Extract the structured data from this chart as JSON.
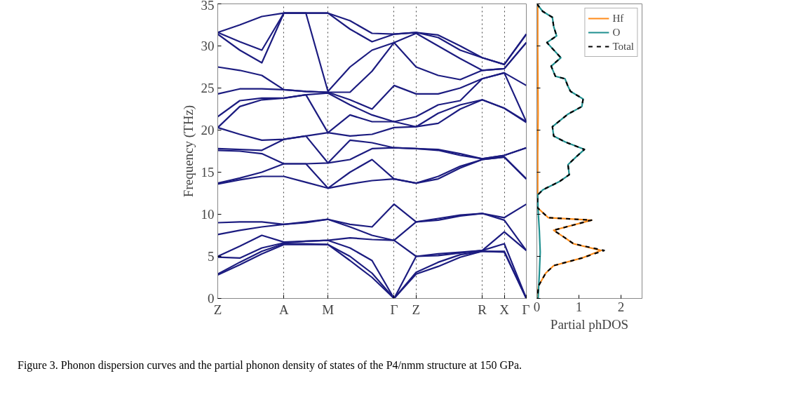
{
  "chart_data": [
    {
      "type": "line",
      "ylabel": "Frequency (THz)",
      "annotations": [
        "Figure 3. Phonon dispersion curves and the partial phonon density of states of the P4/nmm structure at 150 GPa."
      ],
      "categories": [
        "Z",
        null,
        null,
        "A",
        null,
        "M",
        null,
        null,
        "Γ",
        "Z",
        null,
        null,
        "R",
        "X",
        "Γ"
      ],
      "ylim": [
        0,
        35
      ],
      "yticks": [
        0,
        5,
        10,
        15,
        20,
        25,
        30,
        35
      ],
      "grid": "x",
      "line_style": "solid",
      "series": [
        {
          "color": "#1c1c80",
          "values": [
            2.8,
            4.0,
            5.3,
            6.4,
            6.4,
            6.4,
            4.5,
            2.5,
            0,
            2.9,
            3.8,
            4.9,
            5.6,
            5.5,
            0
          ]
        },
        {
          "color": "#1c1c80",
          "values": [
            2.9,
            4.3,
            5.6,
            6.5,
            6.5,
            6.4,
            5.0,
            3.0,
            0,
            3.1,
            4.3,
            5.2,
            5.6,
            5.6,
            0
          ]
        },
        {
          "color": "#1c1c80",
          "values": [
            4.9,
            4.8,
            6.0,
            6.6,
            6.8,
            6.9,
            6.0,
            4.5,
            0,
            5.0,
            5.1,
            5.4,
            5.7,
            6.5,
            0
          ]
        },
        {
          "color": "#1c1c80",
          "values": [
            5.0,
            6.2,
            7.5,
            6.7,
            6.8,
            6.9,
            7.2,
            7.0,
            6.9,
            5.0,
            5.3,
            5.5,
            5.7,
            7.9,
            5.7
          ]
        },
        {
          "color": "#1c1c80",
          "values": [
            7.6,
            8.1,
            8.5,
            8.8,
            9.0,
            9.4,
            8.5,
            7.5,
            6.9,
            9.1,
            9.3,
            9.8,
            10.1,
            9.3,
            5.7
          ]
        },
        {
          "color": "#1c1c80",
          "values": [
            9.0,
            9.1,
            9.1,
            8.8,
            9.1,
            9.4,
            8.8,
            8.5,
            11.2,
            9.1,
            9.5,
            9.9,
            10.1,
            9.6,
            11.2
          ]
        },
        {
          "color": "#1c1c80",
          "values": [
            13.6,
            14.1,
            14.5,
            14.5,
            13.8,
            13.1,
            13.6,
            14.0,
            14.2,
            13.7,
            14.2,
            15.5,
            16.5,
            16.8,
            14.2
          ]
        },
        {
          "color": "#1c1c80",
          "values": [
            13.7,
            14.3,
            15.0,
            16.0,
            16.0,
            13.1,
            15.0,
            16.5,
            14.2,
            13.7,
            14.5,
            15.7,
            16.5,
            16.8,
            14.2
          ]
        },
        {
          "color": "#1c1c80",
          "values": [
            17.6,
            17.5,
            17.2,
            16.0,
            16.0,
            16.1,
            16.5,
            17.8,
            17.9,
            17.8,
            17.6,
            17.0,
            16.6,
            17.0,
            17.9
          ]
        },
        {
          "color": "#1c1c80",
          "values": [
            17.8,
            17.7,
            17.6,
            18.9,
            19.3,
            16.1,
            18.8,
            18.5,
            17.9,
            17.8,
            17.7,
            17.2,
            16.6,
            17.0,
            17.9
          ]
        },
        {
          "color": "#1c1c80",
          "values": [
            20.3,
            19.5,
            18.8,
            18.9,
            19.3,
            19.7,
            19.3,
            19.5,
            20.3,
            20.4,
            20.8,
            22.5,
            23.6,
            22.6,
            20.9
          ]
        },
        {
          "color": "#1c1c80",
          "values": [
            20.3,
            22.8,
            23.6,
            23.8,
            24.2,
            19.7,
            21.8,
            21.0,
            21.0,
            20.4,
            22.0,
            23.0,
            23.6,
            22.6,
            21.0
          ]
        },
        {
          "color": "#1c1c80",
          "values": [
            21.6,
            23.5,
            23.8,
            23.8,
            24.2,
            24.4,
            23.0,
            21.8,
            21.0,
            21.6,
            23.0,
            23.5,
            26.1,
            26.8,
            21.0
          ]
        },
        {
          "color": "#1c1c80",
          "values": [
            24.3,
            24.9,
            24.9,
            24.8,
            24.6,
            24.5,
            23.6,
            22.5,
            25.3,
            24.3,
            24.3,
            25.0,
            26.1,
            26.8,
            25.3
          ]
        },
        {
          "color": "#1c1c80",
          "values": [
            27.5,
            27.1,
            26.5,
            24.8,
            24.6,
            24.5,
            24.5,
            27.0,
            30.4,
            27.5,
            26.5,
            26.0,
            27.1,
            27.3,
            30.4
          ]
        },
        {
          "color": "#1c1c80",
          "values": [
            31.4,
            29.5,
            28.0,
            33.9,
            33.9,
            24.6,
            27.5,
            29.5,
            30.4,
            31.5,
            30.0,
            28.5,
            27.1,
            27.3,
            30.4
          ]
        },
        {
          "color": "#1c1c80",
          "values": [
            31.6,
            30.5,
            29.5,
            33.9,
            33.9,
            33.9,
            32.0,
            30.5,
            31.4,
            31.6,
            31.0,
            29.5,
            28.6,
            27.8,
            31.4
          ]
        },
        {
          "color": "#1c1c80",
          "values": [
            31.6,
            32.5,
            33.5,
            33.9,
            33.9,
            33.9,
            33.0,
            31.5,
            31.4,
            31.6,
            31.3,
            30.0,
            28.6,
            27.8,
            31.4
          ]
        }
      ]
    },
    {
      "type": "line",
      "xlabel": "Partial phDOS",
      "xlim": [
        0,
        2.5
      ],
      "xticks": [
        0,
        1,
        2
      ],
      "ylim": [
        0,
        35
      ],
      "yticks": [
        0,
        5,
        10,
        15,
        20,
        25,
        30,
        35
      ],
      "tick_labels": "x",
      "legend": "top right",
      "series": [
        {
          "name": "Hf",
          "color": "#ff8c1a",
          "line_style": "solid",
          "x": [
            0.02,
            0.02,
            0.03,
            0.02,
            0.02,
            0.01,
            0.27,
            1.3,
            0.4,
            0.67,
            0.87,
            1.53,
            1.07,
            0.4,
            0.21,
            0.04,
            0.01
          ],
          "values": [
            35,
            30,
            22,
            17,
            12.9,
            10.8,
            9.6,
            9.3,
            8.1,
            7.2,
            6.5,
            5.7,
            4.8,
            3.9,
            3.0,
            1.5,
            0
          ]
        },
        {
          "name": "O",
          "color": "#1f9090",
          "line_style": "solid",
          "x": [
            0.0,
            0.14,
            0.37,
            0.4,
            0.47,
            0.24,
            0.57,
            0.34,
            0.44,
            0.67,
            0.74,
            0.8,
            1.1,
            1.07,
            0.74,
            0.37,
            0.4,
            0.67,
            1.13,
            0.93,
            0.74,
            0.77,
            0.54,
            0.14,
            0.02,
            0.03,
            0.06,
            0.08,
            0.06,
            0.03
          ],
          "values": [
            35,
            34.1,
            33.4,
            32.3,
            31.2,
            30.4,
            28.6,
            27.6,
            26.4,
            26.1,
            25.2,
            24.6,
            23.7,
            22.8,
            21.9,
            20.4,
            19.3,
            18.6,
            17.7,
            16.8,
            15.9,
            14.7,
            13.9,
            12.9,
            12.3,
            10.5,
            8,
            5.5,
            3,
            0
          ]
        },
        {
          "name": "Total",
          "color": "#000000",
          "line_style": "dashed",
          "x": [
            0.0,
            0.14,
            0.37,
            0.4,
            0.47,
            0.24,
            0.57,
            0.34,
            0.44,
            0.67,
            0.74,
            0.8,
            1.1,
            1.07,
            0.74,
            0.37,
            0.4,
            0.67,
            1.13,
            0.93,
            0.74,
            0.77,
            0.54,
            0.14,
            0.02,
            0.01,
            0.27,
            1.3,
            0.4,
            0.67,
            0.87,
            1.6,
            1.07,
            0.4,
            0.21,
            0.04,
            0.01
          ],
          "values": [
            35,
            34.1,
            33.4,
            32.3,
            31.2,
            30.4,
            28.6,
            27.6,
            26.4,
            26.1,
            25.2,
            24.6,
            23.7,
            22.8,
            21.9,
            20.4,
            19.3,
            18.6,
            17.7,
            16.8,
            15.9,
            14.7,
            13.9,
            12.9,
            12.3,
            10.8,
            9.6,
            9.3,
            8.1,
            7.2,
            6.5,
            5.7,
            4.8,
            3.9,
            3.0,
            1.5,
            0
          ]
        }
      ]
    }
  ]
}
